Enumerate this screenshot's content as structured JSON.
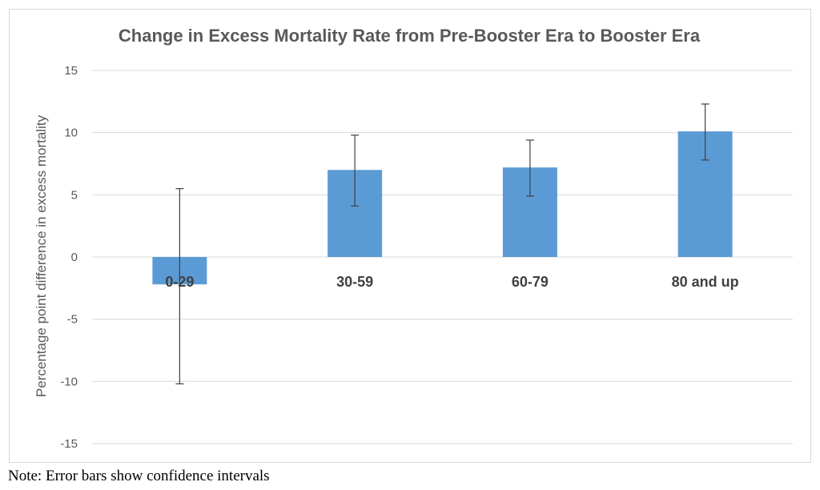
{
  "chart_data": {
    "type": "bar",
    "title": "Change in Excess Mortality Rate from Pre-Booster Era to Booster Era",
    "xlabel": "",
    "ylabel": "Percentage point difference in excess mortality",
    "categories": [
      "0-29",
      "30-59",
      "60-79",
      "80 and up"
    ],
    "values": [
      -2.2,
      7.0,
      7.2,
      10.1
    ],
    "error_low": [
      -10.2,
      4.1,
      4.9,
      7.8
    ],
    "error_high": [
      5.5,
      9.8,
      9.4,
      12.3
    ],
    "ylim": [
      -15,
      15
    ],
    "yticks": [
      15,
      10,
      5,
      0,
      -5,
      -10,
      -15
    ],
    "grid": true,
    "legend": "none",
    "bar_color": "#5b9bd5",
    "error_color": "#404040",
    "grid_color": "#d9d9d9"
  },
  "note": "Note: Error bars show confidence intervals"
}
